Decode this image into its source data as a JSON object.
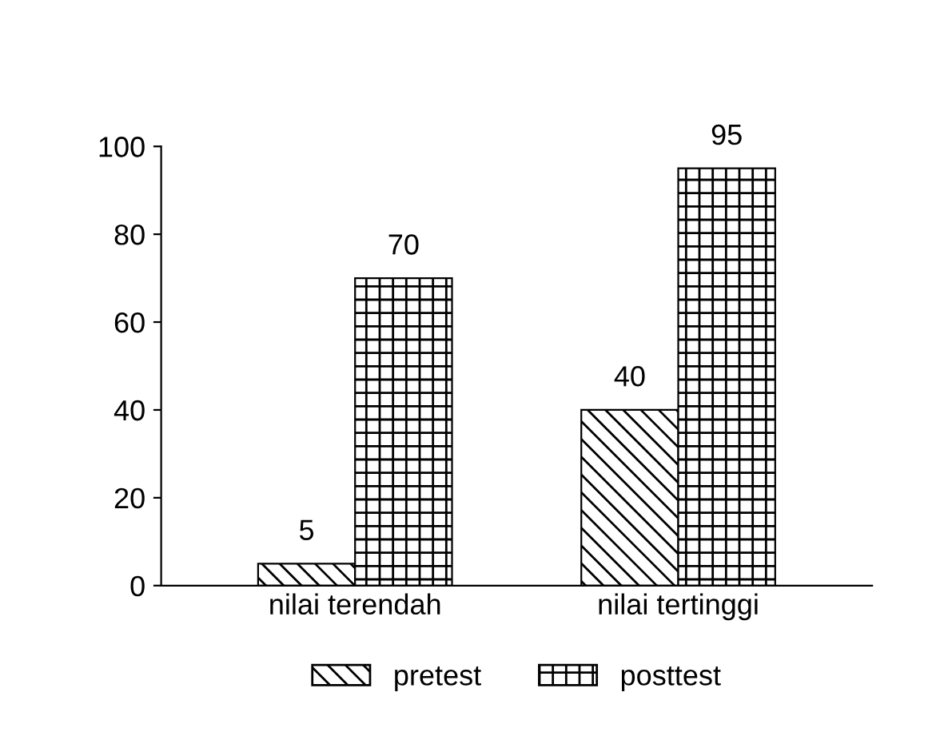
{
  "chart_data": {
    "type": "bar",
    "categories": [
      "nilai terendah",
      "nilai tertinggi"
    ],
    "series": [
      {
        "name": "pretest",
        "color": "#000000",
        "values": [
          5,
          40
        ]
      },
      {
        "name": "posttest",
        "color": "#000000",
        "values": [
          70,
          95
        ]
      }
    ],
    "ylim": [
      0,
      100
    ],
    "yticks": [
      0,
      20,
      40,
      60,
      80,
      100
    ],
    "data_labels": true,
    "legend": "bottom",
    "grid": false
  }
}
